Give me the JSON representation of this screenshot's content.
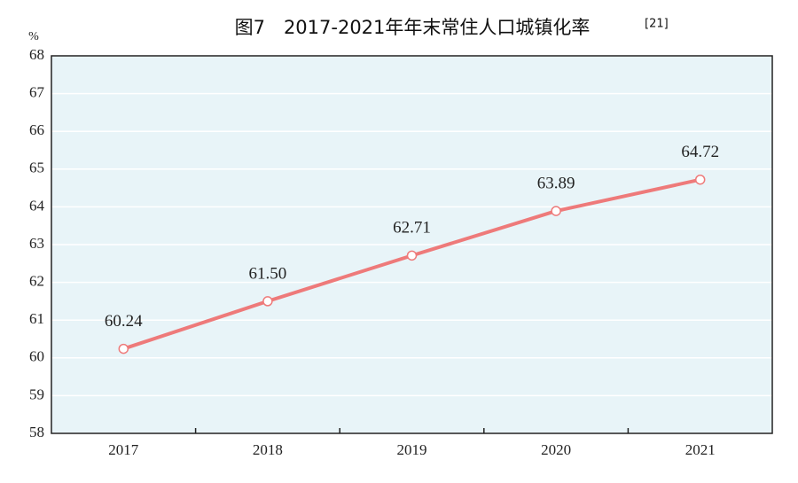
{
  "chart_data": {
    "type": "line",
    "title": "图7　2017-2021年年末常住人口城镇化率",
    "title_superscript": "[21]",
    "y_unit": "%",
    "categories": [
      "2017",
      "2018",
      "2019",
      "2020",
      "2021"
    ],
    "values": [
      60.24,
      61.5,
      62.71,
      63.89,
      64.72
    ],
    "value_labels": [
      "60.24",
      "61.50",
      "62.71",
      "63.89",
      "64.72"
    ],
    "color": "#ee7a7a",
    "background": "#e8f4f8",
    "ylim": [
      58,
      68
    ],
    "yticks": [
      58,
      59,
      60,
      61,
      62,
      63,
      64,
      65,
      66,
      67,
      68
    ],
    "grid": true
  }
}
